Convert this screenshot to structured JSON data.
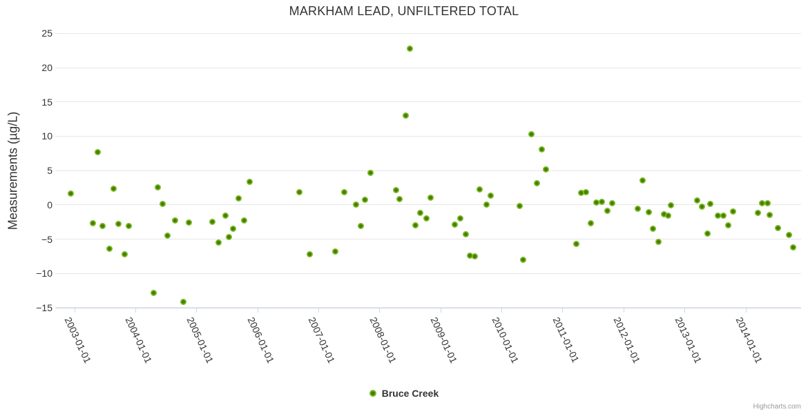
{
  "credits": {
    "label": "Highcharts.com"
  },
  "colors": {
    "marker_outer": "#7cb922",
    "marker_inner": "#447c04",
    "grid": "#e6e6e6",
    "axis": "#ccd6eb",
    "text": "#333333",
    "credits_text": "#999999"
  },
  "chart_data": {
    "type": "scatter",
    "title": "MARKHAM LEAD, UNFILTERED TOTAL",
    "xlabel": "",
    "ylabel": "Measurements (µg/L)",
    "ylim": [
      -15,
      25
    ],
    "xlim": [
      "2002-09-01",
      "2014-12-01"
    ],
    "grid": true,
    "legend_position": "bottom-center",
    "y_ticks": [
      25,
      20,
      15,
      10,
      5,
      0,
      -5,
      -10,
      -15
    ],
    "y_tick_labels": [
      "25",
      "20",
      "15",
      "10",
      "5",
      "0",
      "−5",
      "−10",
      "−15"
    ],
    "x_tick_labels": [
      "2003-01-01",
      "2004-01-01",
      "2005-01-01",
      "2006-01-01",
      "2007-01-01",
      "2008-01-01",
      "2009-01-01",
      "2010-01-01",
      "2011-01-01",
      "2012-01-01",
      "2013-01-01",
      "2014-01-01"
    ],
    "series": [
      {
        "name": "Bruce Creek",
        "marker_outer": "#7cb922",
        "marker_inner": "#447c04",
        "points": [
          [
            "2002-12-10",
            1.6
          ],
          [
            "2003-04-20",
            -2.7
          ],
          [
            "2003-05-20",
            7.7
          ],
          [
            "2003-06-18",
            -3.1
          ],
          [
            "2003-07-28",
            -6.4
          ],
          [
            "2003-08-22",
            2.3
          ],
          [
            "2003-09-20",
            -2.8
          ],
          [
            "2003-10-28",
            -7.2
          ],
          [
            "2003-11-22",
            -3.1
          ],
          [
            "2004-04-20",
            -12.8
          ],
          [
            "2004-05-14",
            2.6
          ],
          [
            "2004-06-12",
            0.1
          ],
          [
            "2004-07-10",
            -4.5
          ],
          [
            "2004-08-25",
            -2.3
          ],
          [
            "2004-10-14",
            -14.2
          ],
          [
            "2004-11-16",
            -2.6
          ],
          [
            "2005-04-05",
            -2.5
          ],
          [
            "2005-05-12",
            -5.5
          ],
          [
            "2005-06-23",
            -1.6
          ],
          [
            "2005-07-13",
            -4.7
          ],
          [
            "2005-08-06",
            -3.5
          ],
          [
            "2005-09-08",
            0.9
          ],
          [
            "2005-10-11",
            -2.3
          ],
          [
            "2005-11-13",
            3.4
          ],
          [
            "2006-09-08",
            1.8
          ],
          [
            "2006-11-08",
            -7.2
          ],
          [
            "2007-04-11",
            -6.8
          ],
          [
            "2007-06-02",
            1.8
          ],
          [
            "2007-08-12",
            0.0
          ],
          [
            "2007-09-09",
            -3.1
          ],
          [
            "2007-10-04",
            0.7
          ],
          [
            "2007-11-06",
            4.7
          ],
          [
            "2008-04-07",
            2.1
          ],
          [
            "2008-04-28",
            0.8
          ],
          [
            "2008-06-04",
            13.0
          ],
          [
            "2008-06-30",
            22.8
          ],
          [
            "2008-08-01",
            -3.0
          ],
          [
            "2008-08-31",
            -1.2
          ],
          [
            "2008-10-06",
            -2.0
          ],
          [
            "2008-11-01",
            1.0
          ],
          [
            "2009-03-27",
            -2.9
          ],
          [
            "2009-04-29",
            -2.0
          ],
          [
            "2009-05-29",
            -4.3
          ],
          [
            "2009-06-23",
            -7.4
          ],
          [
            "2009-07-23",
            -7.5
          ],
          [
            "2009-08-21",
            2.2
          ],
          [
            "2009-10-03",
            0.0
          ],
          [
            "2009-10-26",
            1.3
          ],
          [
            "2010-04-18",
            -0.2
          ],
          [
            "2010-05-10",
            -8.0
          ],
          [
            "2010-06-26",
            10.3
          ],
          [
            "2010-07-29",
            3.2
          ],
          [
            "2010-08-27",
            8.1
          ],
          [
            "2010-09-22",
            5.2
          ],
          [
            "2011-03-24",
            -5.7
          ],
          [
            "2011-04-22",
            1.7
          ],
          [
            "2011-05-20",
            1.8
          ],
          [
            "2011-06-19",
            -2.7
          ],
          [
            "2011-07-22",
            0.3
          ],
          [
            "2011-08-24",
            0.4
          ],
          [
            "2011-09-25",
            -0.9
          ],
          [
            "2011-10-24",
            0.2
          ],
          [
            "2012-03-23",
            -0.6
          ],
          [
            "2012-04-21",
            3.6
          ],
          [
            "2012-05-28",
            -1.1
          ],
          [
            "2012-06-22",
            -3.5
          ],
          [
            "2012-07-25",
            -5.4
          ],
          [
            "2012-08-27",
            -1.4
          ],
          [
            "2012-09-21",
            -1.6
          ],
          [
            "2012-10-10",
            -0.1
          ],
          [
            "2013-03-14",
            0.6
          ],
          [
            "2013-04-15",
            -0.3
          ],
          [
            "2013-05-18",
            -4.2
          ],
          [
            "2013-06-02",
            0.1
          ],
          [
            "2013-07-19",
            -1.6
          ],
          [
            "2013-08-21",
            -1.6
          ],
          [
            "2013-09-19",
            -3.0
          ],
          [
            "2013-10-15",
            -1.0
          ],
          [
            "2014-03-14",
            -1.2
          ],
          [
            "2014-04-07",
            0.2
          ],
          [
            "2014-05-10",
            0.2
          ],
          [
            "2014-05-23",
            -1.5
          ],
          [
            "2014-07-11",
            -3.4
          ],
          [
            "2014-09-16",
            -4.4
          ],
          [
            "2014-10-11",
            -6.2
          ]
        ]
      }
    ]
  }
}
